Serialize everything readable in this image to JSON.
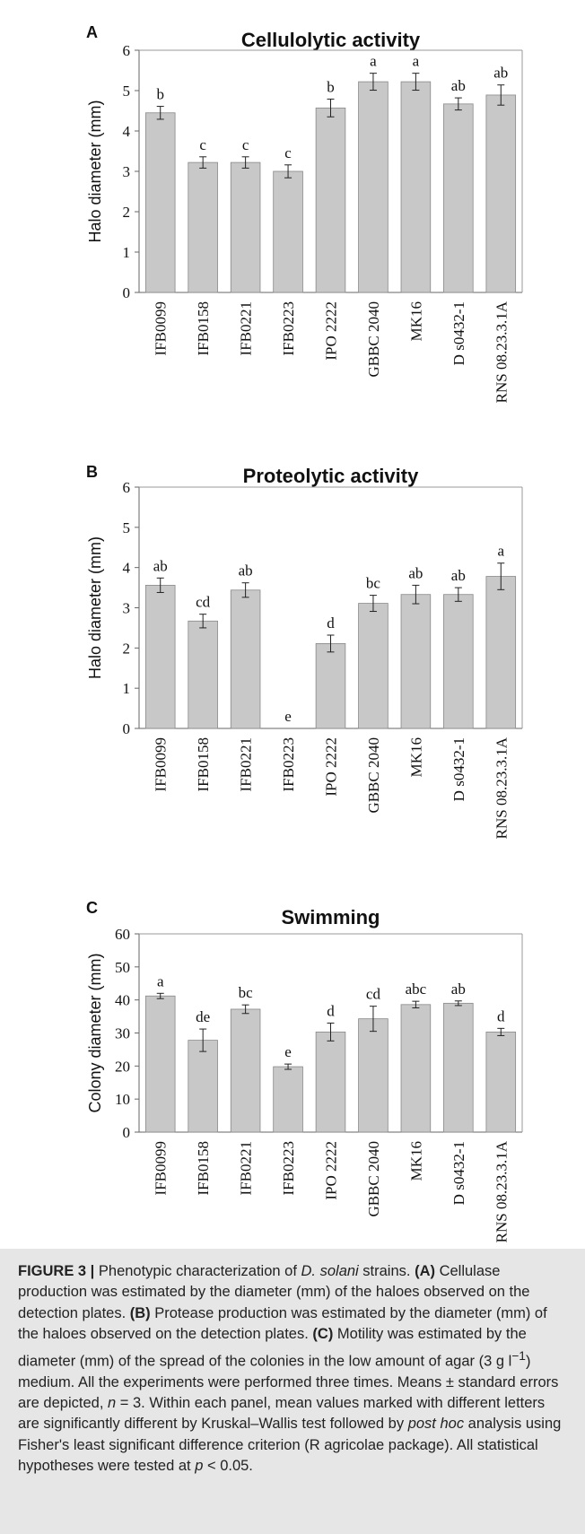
{
  "chart_data": [
    {
      "type": "bar",
      "panel": "A",
      "title": "Cellulolytic activity",
      "ylabel": "Halo diameter (mm)",
      "xlabel": "",
      "ylim": [
        0,
        6
      ],
      "yticks": [
        0,
        1,
        2,
        3,
        4,
        5,
        6
      ],
      "categories": [
        "IFB0099",
        "IFB0158",
        "IFB0221",
        "IFB0223",
        "IPO 2222",
        "GBBC 2040",
        "MK16",
        "D s0432-1",
        "RNS 08.23.3.1A"
      ],
      "values": [
        4.45,
        3.22,
        3.22,
        3.0,
        4.57,
        5.22,
        5.22,
        4.67,
        4.89
      ],
      "errors": [
        0.16,
        0.14,
        0.14,
        0.16,
        0.22,
        0.21,
        0.21,
        0.15,
        0.25
      ],
      "letters": [
        "b",
        "c",
        "c",
        "c",
        "b",
        "a",
        "a",
        "ab",
        "ab"
      ],
      "grid": false,
      "bar_color": "#c8c8c8"
    },
    {
      "type": "bar",
      "panel": "B",
      "title": "Proteolytic activity",
      "ylabel": "Halo diameter (mm)",
      "xlabel": "",
      "ylim": [
        0,
        6
      ],
      "yticks": [
        0,
        1,
        2,
        3,
        4,
        5,
        6
      ],
      "categories": [
        "IFB0099",
        "IFB0158",
        "IFB0221",
        "IFB0223",
        "IPO 2222",
        "GBBC 2040",
        "MK16",
        "D s0432-1",
        "RNS 08.23.3.1A"
      ],
      "values": [
        3.56,
        2.67,
        3.44,
        0,
        2.11,
        3.11,
        3.33,
        3.33,
        3.78
      ],
      "errors": [
        0.18,
        0.17,
        0.18,
        0,
        0.21,
        0.2,
        0.23,
        0.17,
        0.33
      ],
      "letters": [
        "ab",
        "cd",
        "ab",
        "e",
        "d",
        "bc",
        "ab",
        "ab",
        "a"
      ],
      "grid": false,
      "bar_color": "#c8c8c8"
    },
    {
      "type": "bar",
      "panel": "C",
      "title": "Swimming",
      "ylabel": "Colony diameter (mm)",
      "xlabel": "",
      "ylim": [
        0,
        60
      ],
      "yticks": [
        0,
        10,
        20,
        30,
        40,
        50,
        60
      ],
      "categories": [
        "IFB0099",
        "IFB0158",
        "IFB0221",
        "IFB0223",
        "IPO 2222",
        "GBBC 2040",
        "MK16",
        "D s0432-1",
        "RNS 08.23.3.1A"
      ],
      "values": [
        41.2,
        27.8,
        37.2,
        19.8,
        30.3,
        34.3,
        38.6,
        39.0,
        30.3
      ],
      "errors": [
        0.8,
        3.4,
        1.3,
        0.8,
        2.7,
        3.8,
        1.0,
        0.7,
        1.1
      ],
      "letters": [
        "a",
        "de",
        "bc",
        "e",
        "d",
        "cd",
        "abc",
        "ab",
        "d"
      ],
      "grid": false,
      "bar_color": "#c8c8c8"
    }
  ],
  "caption": {
    "label": "FIGURE 3 |",
    "intro": " Phenotypic characterization of ",
    "species": "D. solani",
    "intro_end": " strains. ",
    "a_label": "(A)",
    "a_text": " Cellulase production was estimated by the diameter (mm) of the haloes observed on the detection plates. ",
    "b_label": "(B)",
    "b_text": " Protease production was estimated by the diameter (mm) of the haloes observed on the detection plates. ",
    "c_label": "(C)",
    "c_text": " Motility was estimated by the diameter (mm) of the spread of the colonies in the low amount of agar (3 g l",
    "superscript": "−1",
    "c_text2": ") medium. All the experiments were performed three times. Means ± standard errors are depicted, ",
    "n_italic": "n",
    "stats_text": " = 3. Within each panel, mean values marked with different letters are significantly different by Kruskal–Wallis test followed by ",
    "post_hoc": "post hoc",
    "stats_text2": " analysis using Fisher's least significant difference criterion (R agricolae package). All statistical hypotheses were tested at ",
    "p_italic": "p",
    "p_text": " < 0.05."
  }
}
